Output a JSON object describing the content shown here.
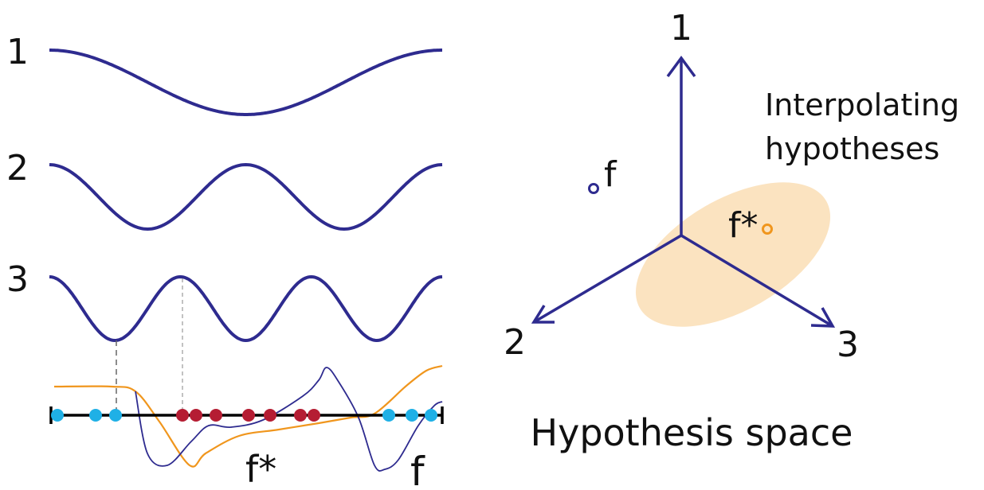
{
  "basis": {
    "labels": [
      "1",
      "2",
      "3"
    ],
    "color": "#2e2b8f"
  },
  "samples": {
    "negative_color": "#1fb0e6",
    "positive_color": "#b51d33",
    "f_star_label": "f*",
    "f_label": "f",
    "f_star_color": "#f0961d",
    "f_color": "#2e2b8f"
  },
  "hypothesis_space": {
    "axis_labels": [
      "1",
      "2",
      "3"
    ],
    "interp_label_line1": "Interpolating",
    "interp_label_line2": "hypotheses",
    "interp_region_color": "#fbe3c0",
    "f_label": "f",
    "f_star_label": "f*",
    "title": "Hypothesis space"
  }
}
